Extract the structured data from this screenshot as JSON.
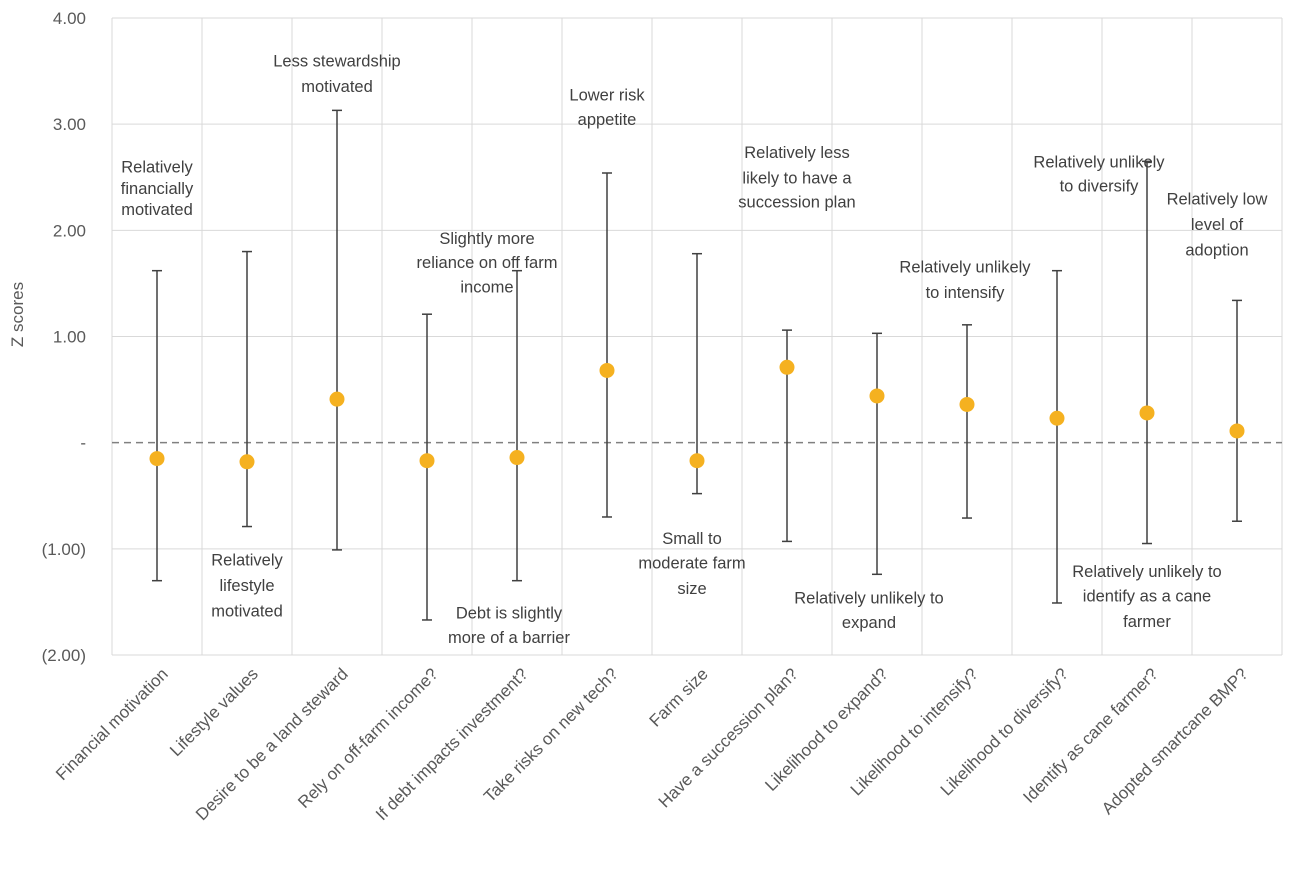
{
  "chart_data": {
    "type": "scatter",
    "ylabel": "Z scores",
    "ylim": [
      -2,
      4
    ],
    "yticks": [
      {
        "value": 4,
        "label": "4.00"
      },
      {
        "value": 3,
        "label": "3.00"
      },
      {
        "value": 2,
        "label": "2.00"
      },
      {
        "value": 1,
        "label": "1.00"
      },
      {
        "value": 0,
        "label": "-"
      },
      {
        "value": -1,
        "label": "(1.00)"
      },
      {
        "value": -2,
        "label": "(2.00)"
      }
    ],
    "grid": true,
    "reference_line": 0,
    "marker_color": "#F5B120",
    "categories": [
      {
        "name": "Financial motivation",
        "value": -0.15,
        "low": -1.3,
        "high": 1.62,
        "note": [
          "Relatively",
          "financially",
          "motivated"
        ],
        "note_y": [
          2.6,
          2.4,
          2.2
        ],
        "note_dx": 0
      },
      {
        "name": "Lifestyle values",
        "value": -0.18,
        "low": -0.79,
        "high": 1.8,
        "note": [
          "Relatively",
          "lifestyle",
          "motivated"
        ],
        "note_y": [
          -1.1,
          -1.34,
          -1.58
        ],
        "note_dx": 0
      },
      {
        "name": "Desire to be a land steward",
        "value": 0.41,
        "low": -1.01,
        "high": 3.13,
        "note": [
          "Less stewardship",
          "motivated"
        ],
        "note_y": [
          3.6,
          3.36
        ],
        "note_dx": 0
      },
      {
        "name": "Rely on off-farm income?",
        "value": -0.17,
        "low": -1.67,
        "high": 1.21,
        "note": [
          "Slightly more",
          "reliance on off farm",
          "income"
        ],
        "note_y": [
          1.93,
          1.7,
          1.47
        ],
        "note_dx": 60
      },
      {
        "name": "If debt impacts investment?",
        "value": -0.14,
        "low": -1.3,
        "high": 1.62,
        "note": [
          "Debt is slightly",
          "more of a barrier"
        ],
        "note_y": [
          -1.6,
          -1.83
        ],
        "note_dx": -8
      },
      {
        "name": "Take risks on new tech?",
        "value": 0.68,
        "low": -0.7,
        "high": 2.54,
        "note": [
          "Lower risk",
          "appetite"
        ],
        "note_y": [
          3.28,
          3.05
        ],
        "note_dx": 0
      },
      {
        "name": "Farm size",
        "value": -0.17,
        "low": -0.48,
        "high": 1.78,
        "note": [
          "Small to",
          "moderate farm",
          "size"
        ],
        "note_y": [
          -0.9,
          -1.13,
          -1.37
        ],
        "note_dx": -5
      },
      {
        "name": "Have a succession plan?",
        "value": 0.71,
        "low": -0.93,
        "high": 1.06,
        "note": [
          "Relatively less",
          "likely to have a",
          "succession plan"
        ],
        "note_y": [
          2.74,
          2.5,
          2.27
        ],
        "note_dx": 10
      },
      {
        "name": "Likelihood to expand?",
        "value": 0.44,
        "low": -1.24,
        "high": 1.03,
        "note": [
          "Relatively unlikely to",
          "expand"
        ],
        "note_y": [
          -1.46,
          -1.69
        ],
        "note_dx": -8
      },
      {
        "name": "Likelihood to intensify?",
        "value": 0.36,
        "low": -0.71,
        "high": 1.11,
        "note": [
          "Relatively unlikely",
          "to intensify"
        ],
        "note_y": [
          1.66,
          1.42
        ],
        "note_dx": -2
      },
      {
        "name": "Likelihood to diversify?",
        "value": 0.23,
        "low": -1.51,
        "high": 1.62,
        "note": [
          "Relatively unlikely",
          "to diversify"
        ],
        "note_y": [
          2.65,
          2.42
        ],
        "note_dx": 42
      },
      {
        "name": "Identify as cane farmer?",
        "value": 0.28,
        "low": -0.95,
        "high": 2.65,
        "note": [
          "Relatively unlikely to",
          "identify as a cane",
          "farmer"
        ],
        "note_y": [
          -1.21,
          -1.44,
          -1.68
        ],
        "note_dx": 0
      },
      {
        "name": "Adopted smartcane BMP?",
        "value": 0.11,
        "low": -0.74,
        "high": 1.34,
        "note": [
          "Relatively low",
          "level of",
          "adoption"
        ],
        "note_y": [
          2.3,
          2.06,
          1.82
        ],
        "note_dx": -20
      }
    ]
  }
}
